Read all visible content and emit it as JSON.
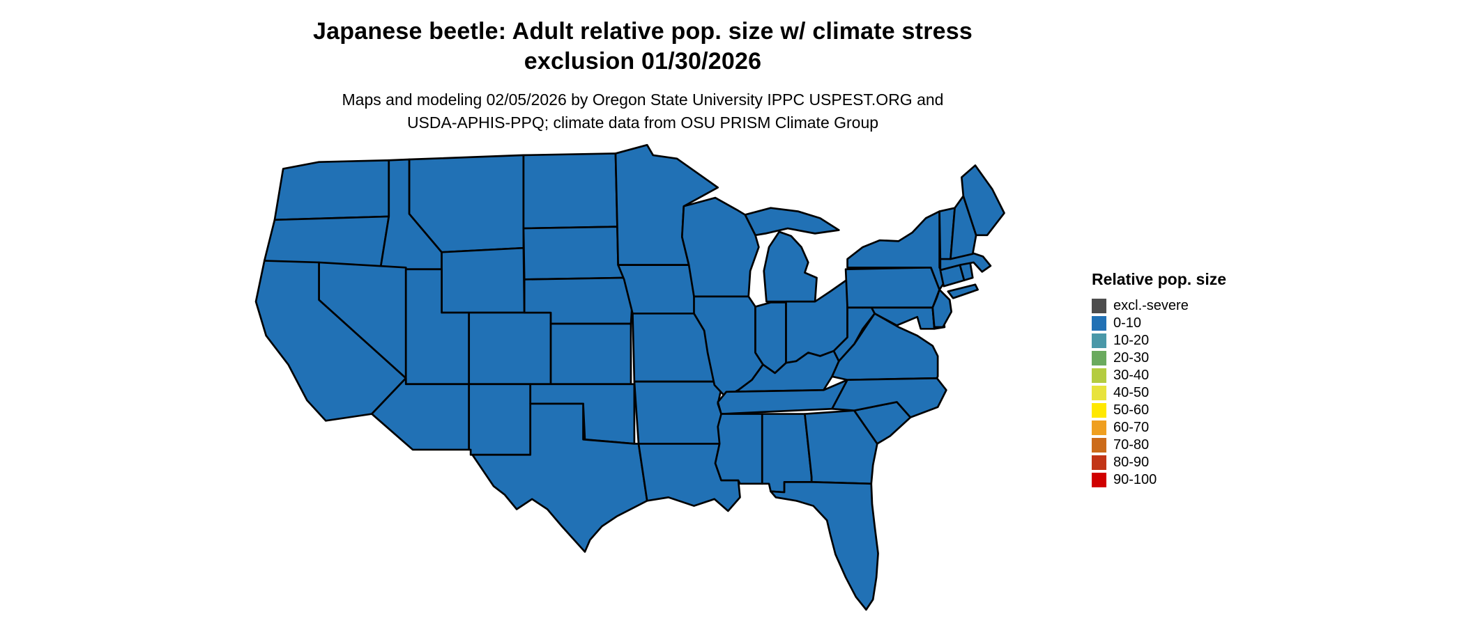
{
  "header": {
    "title_line1": "Japanese beetle: Adult relative pop. size w/ climate stress",
    "title_line2": "exclusion 01/30/2026",
    "subtitle_line1": "Maps and modeling 02/05/2026 by Oregon State University IPPC USPEST.ORG and",
    "subtitle_line2": "USDA-APHIS-PPQ; climate data from OSU PRISM Climate Group"
  },
  "map": {
    "region": "Contiguous United States",
    "type": "choropleth",
    "all_states_category": "0-10",
    "note": "Entire mapped area shaded in the 0-10 relative population size class"
  },
  "legend": {
    "title": "Relative pop. size",
    "items": [
      {
        "label": "excl.-severe",
        "color": "#4d4d4d"
      },
      {
        "label": "0-10",
        "color": "#2171b5"
      },
      {
        "label": "10-20",
        "color": "#4a98a8"
      },
      {
        "label": "20-30",
        "color": "#6aaa5e"
      },
      {
        "label": "30-40",
        "color": "#b4cc40"
      },
      {
        "label": "40-50",
        "color": "#e8e33c"
      },
      {
        "label": "50-60",
        "color": "#ffe800"
      },
      {
        "label": "60-70",
        "color": "#ef9f20"
      },
      {
        "label": "70-80",
        "color": "#cc6b1a"
      },
      {
        "label": "80-90",
        "color": "#c23516"
      },
      {
        "label": "90-100",
        "color": "#d00000"
      }
    ]
  },
  "colors": {
    "map_fill": "#2171b5",
    "map_border": "#000000",
    "background": "#ffffff"
  }
}
